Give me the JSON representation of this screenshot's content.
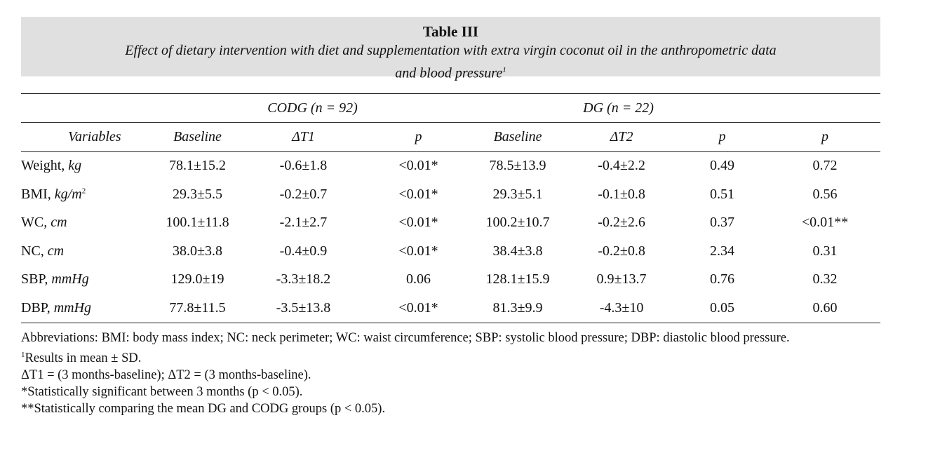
{
  "caption": {
    "title": "Table III",
    "subtitle_line1": "Effect of dietary intervention with diet and supplementation with extra virgin coconut oil in the anthropometric data",
    "subtitle_line2": "and blood pressure",
    "subtitle_sup": "1"
  },
  "groups": {
    "codg": "CODG (n = 92)",
    "dg": "DG (n = 22)"
  },
  "headers": [
    "Variables",
    "Baseline",
    "ΔT1",
    "p",
    "Baseline",
    "ΔT2",
    "p",
    "p"
  ],
  "rows": [
    {
      "name": "Weight, ",
      "unit": "kg",
      "unit_sup": "",
      "cells": [
        "78.1±15.2",
        "-0.6±1.8",
        "<0.01*",
        "78.5±13.9",
        "-0.4±2.2",
        "0.49",
        "0.72"
      ]
    },
    {
      "name": "BMI, ",
      "unit": "kg/m",
      "unit_sup": "2",
      "cells": [
        "29.3±5.5",
        "-0.2±0.7",
        "<0.01*",
        "29.3±5.1",
        "-0.1±0.8",
        "0.51",
        "0.56"
      ]
    },
    {
      "name": "WC, ",
      "unit": "cm",
      "unit_sup": "",
      "cells": [
        "100.1±11.8",
        "-2.1±2.7",
        "<0.01*",
        "100.2±10.7",
        "-0.2±2.6",
        "0.37",
        "<0.01**"
      ]
    },
    {
      "name": "NC, ",
      "unit": "cm",
      "unit_sup": "",
      "cells": [
        "38.0±3.8",
        "-0.4±0.9",
        "<0.01*",
        "38.4±3.8",
        "-0.2±0.8",
        "2.34",
        "0.31"
      ]
    },
    {
      "name": "SBP, ",
      "unit": "mmHg",
      "unit_sup": "",
      "cells": [
        "129.0±19",
        "-3.3±18.2",
        "0.06",
        "128.1±15.9",
        "0.9±13.7",
        "0.76",
        "0.32"
      ]
    },
    {
      "name": "DBP, ",
      "unit": "mmHg",
      "unit_sup": "",
      "cells": [
        "77.8±11.5",
        "-3.5±13.8",
        "<0.01*",
        "81.3±9.9",
        "-4.3±10",
        "0.05",
        "0.60"
      ]
    }
  ],
  "notes": {
    "abbreviations": "Abbreviations: BMI: body mass index; NC: neck perimeter; WC: waist circumference; SBP: systolic blood pressure; DBP: diastolic blood pressure.",
    "note1_sup": "1",
    "note1": "Results in mean ± SD.",
    "note2": "ΔT1 = (3 months-baseline); ΔT2 = (3 months-baseline).",
    "note3": "*Statistically significant between 3 months (p < 0.05).",
    "note4": "**Statistically comparing the mean DG and CODG groups (p < 0.05)."
  }
}
